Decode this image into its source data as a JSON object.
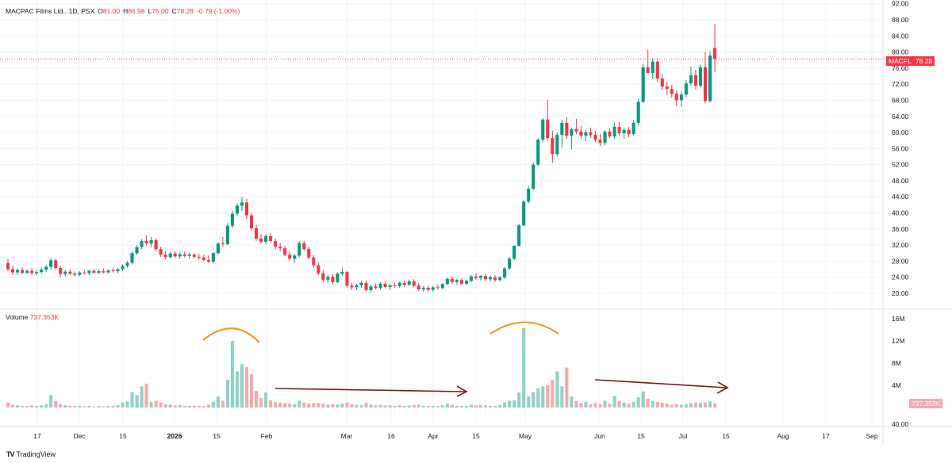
{
  "header": {
    "symbol": "MACPAC Films Ltd., 1D, PSX",
    "open_label": "O",
    "open": "81.00",
    "high_label": "H",
    "high": "86.98",
    "low_label": "L",
    "low": "75.00",
    "close_label": "C",
    "close": "78.28",
    "change": "-0.79 (-1.00%)"
  },
  "volume_header": {
    "label": "Volume",
    "value": "737.353K"
  },
  "price_tag": {
    "symbol": "MACFL",
    "value": "78.28"
  },
  "volume_tag": {
    "value": "737.353K"
  },
  "brand": {
    "logo": "TV",
    "name": "TradingView"
  },
  "colors": {
    "up": "#089981",
    "down": "#f23645",
    "vol_up": "#8fd2c7",
    "vol_down": "#f7a9b0",
    "annotation_orange": "#f7931a",
    "annotation_arrow": "#7b1e1e"
  },
  "chart_data": {
    "type": "candlestick",
    "price_axis": {
      "min": 18,
      "max": 92,
      "ticks": [
        "92.00",
        "88.00",
        "84.00",
        "80.00",
        "76.00",
        "72.00",
        "68.00",
        "64.00",
        "60.00",
        "56.00",
        "52.00",
        "48.00",
        "44.00",
        "40.00",
        "36.00",
        "32.00",
        "28.00",
        "24.00",
        "20.00"
      ]
    },
    "volume_axis": {
      "max": 16,
      "ticks": [
        "16M",
        "12M",
        "8M",
        "4M"
      ],
      "extra_tick": "40.00"
    },
    "x_tick_labels": [
      "17",
      "Dec",
      "15",
      "2026",
      "15",
      "Feb",
      "Mar",
      "16",
      "Apr",
      "15",
      "May",
      "Jun",
      "15",
      "Jul",
      "15",
      "Aug",
      "17",
      "Sep"
    ],
    "annotations": [
      "volume-arc-1",
      "volume-arc-2",
      "trend-arrow-1",
      "trend-arrow-2"
    ],
    "candles": [
      {
        "o": 27.5,
        "h": 28.5,
        "l": 25.5,
        "c": 26.0,
        "v": 0.9
      },
      {
        "o": 26.0,
        "h": 26.8,
        "l": 24.5,
        "c": 25.2,
        "v": 0.5
      },
      {
        "o": 25.2,
        "h": 26.2,
        "l": 24.6,
        "c": 25.8,
        "v": 0.4
      },
      {
        "o": 25.8,
        "h": 26.5,
        "l": 24.8,
        "c": 25.1,
        "v": 0.3
      },
      {
        "o": 25.1,
        "h": 26.0,
        "l": 24.9,
        "c": 25.6,
        "v": 0.3
      },
      {
        "o": 25.6,
        "h": 26.3,
        "l": 24.7,
        "c": 25.0,
        "v": 0.4
      },
      {
        "o": 25.0,
        "h": 25.8,
        "l": 24.4,
        "c": 25.3,
        "v": 0.3
      },
      {
        "o": 25.3,
        "h": 26.4,
        "l": 24.9,
        "c": 25.9,
        "v": 0.4
      },
      {
        "o": 25.9,
        "h": 27.0,
        "l": 25.3,
        "c": 26.6,
        "v": 0.6
      },
      {
        "o": 26.6,
        "h": 28.8,
        "l": 25.9,
        "c": 28.2,
        "v": 2.2
      },
      {
        "o": 28.2,
        "h": 28.6,
        "l": 26.0,
        "c": 26.3,
        "v": 1.2
      },
      {
        "o": 26.3,
        "h": 26.8,
        "l": 24.0,
        "c": 24.8,
        "v": 0.6
      },
      {
        "o": 24.8,
        "h": 25.8,
        "l": 24.3,
        "c": 25.4,
        "v": 0.4
      },
      {
        "o": 25.4,
        "h": 26.0,
        "l": 24.6,
        "c": 24.9,
        "v": 0.3
      },
      {
        "o": 24.9,
        "h": 25.4,
        "l": 24.2,
        "c": 24.6,
        "v": 0.3
      },
      {
        "o": 24.6,
        "h": 25.5,
        "l": 24.3,
        "c": 25.2,
        "v": 0.3
      },
      {
        "o": 25.2,
        "h": 25.8,
        "l": 24.7,
        "c": 25.0,
        "v": 0.2
      },
      {
        "o": 25.0,
        "h": 25.9,
        "l": 24.5,
        "c": 25.6,
        "v": 0.3
      },
      {
        "o": 25.6,
        "h": 26.0,
        "l": 24.9,
        "c": 25.1,
        "v": 0.2
      },
      {
        "o": 25.1,
        "h": 25.9,
        "l": 24.8,
        "c": 25.5,
        "v": 0.3
      },
      {
        "o": 25.5,
        "h": 26.2,
        "l": 25.0,
        "c": 25.2,
        "v": 0.2
      },
      {
        "o": 25.2,
        "h": 26.0,
        "l": 24.9,
        "c": 25.7,
        "v": 0.3
      },
      {
        "o": 25.7,
        "h": 26.4,
        "l": 25.2,
        "c": 25.5,
        "v": 0.3
      },
      {
        "o": 25.5,
        "h": 26.3,
        "l": 25.0,
        "c": 26.0,
        "v": 0.4
      },
      {
        "o": 26.0,
        "h": 27.2,
        "l": 25.6,
        "c": 26.8,
        "v": 0.9
      },
      {
        "o": 26.8,
        "h": 28.0,
        "l": 26.4,
        "c": 27.6,
        "v": 1.1
      },
      {
        "o": 27.6,
        "h": 30.5,
        "l": 27.2,
        "c": 30.0,
        "v": 2.8
      },
      {
        "o": 30.0,
        "h": 32.0,
        "l": 29.5,
        "c": 31.5,
        "v": 2.2
      },
      {
        "o": 31.5,
        "h": 33.5,
        "l": 31.0,
        "c": 33.0,
        "v": 3.8
      },
      {
        "o": 33.0,
        "h": 34.5,
        "l": 31.8,
        "c": 32.4,
        "v": 4.3
      },
      {
        "o": 32.4,
        "h": 34.0,
        "l": 31.5,
        "c": 33.2,
        "v": 1.0
      },
      {
        "o": 33.2,
        "h": 33.8,
        "l": 30.5,
        "c": 31.0,
        "v": 1.2
      },
      {
        "o": 31.0,
        "h": 31.6,
        "l": 29.0,
        "c": 29.6,
        "v": 0.9
      },
      {
        "o": 29.6,
        "h": 30.5,
        "l": 28.4,
        "c": 29.0,
        "v": 0.6
      },
      {
        "o": 29.0,
        "h": 30.3,
        "l": 28.6,
        "c": 29.9,
        "v": 0.5
      },
      {
        "o": 29.9,
        "h": 30.5,
        "l": 28.8,
        "c": 29.2,
        "v": 0.4
      },
      {
        "o": 29.2,
        "h": 30.2,
        "l": 28.5,
        "c": 29.7,
        "v": 0.4
      },
      {
        "o": 29.7,
        "h": 30.4,
        "l": 28.9,
        "c": 29.3,
        "v": 0.3
      },
      {
        "o": 29.3,
        "h": 30.1,
        "l": 28.6,
        "c": 29.6,
        "v": 0.3
      },
      {
        "o": 29.6,
        "h": 30.0,
        "l": 28.7,
        "c": 29.1,
        "v": 0.3
      },
      {
        "o": 29.1,
        "h": 29.8,
        "l": 28.4,
        "c": 28.9,
        "v": 0.3
      },
      {
        "o": 28.9,
        "h": 29.6,
        "l": 27.9,
        "c": 28.3,
        "v": 0.3
      },
      {
        "o": 28.3,
        "h": 29.4,
        "l": 27.5,
        "c": 27.9,
        "v": 0.5
      },
      {
        "o": 27.9,
        "h": 30.3,
        "l": 27.4,
        "c": 30.0,
        "v": 1.0
      },
      {
        "o": 30.0,
        "h": 32.8,
        "l": 29.6,
        "c": 32.4,
        "v": 2.0
      },
      {
        "o": 32.4,
        "h": 34.0,
        "l": 31.5,
        "c": 32.2,
        "v": 1.2
      },
      {
        "o": 32.2,
        "h": 37.5,
        "l": 32.0,
        "c": 36.8,
        "v": 5.0
      },
      {
        "o": 36.8,
        "h": 40.5,
        "l": 36.2,
        "c": 39.8,
        "v": 12.0
      },
      {
        "o": 39.8,
        "h": 42.4,
        "l": 39.2,
        "c": 41.8,
        "v": 6.5
      },
      {
        "o": 41.8,
        "h": 44.0,
        "l": 40.5,
        "c": 42.6,
        "v": 7.8
      },
      {
        "o": 42.6,
        "h": 43.5,
        "l": 38.5,
        "c": 39.4,
        "v": 7.3
      },
      {
        "o": 39.4,
        "h": 40.0,
        "l": 35.6,
        "c": 36.2,
        "v": 6.0
      },
      {
        "o": 36.2,
        "h": 37.0,
        "l": 33.0,
        "c": 33.6,
        "v": 3.0
      },
      {
        "o": 33.6,
        "h": 34.8,
        "l": 32.3,
        "c": 32.8,
        "v": 1.7
      },
      {
        "o": 32.8,
        "h": 34.8,
        "l": 32.2,
        "c": 34.2,
        "v": 2.7
      },
      {
        "o": 34.2,
        "h": 35.0,
        "l": 32.4,
        "c": 33.0,
        "v": 1.3
      },
      {
        "o": 33.0,
        "h": 33.6,
        "l": 30.8,
        "c": 31.6,
        "v": 1.0
      },
      {
        "o": 31.6,
        "h": 32.5,
        "l": 30.4,
        "c": 31.2,
        "v": 0.9
      },
      {
        "o": 31.2,
        "h": 31.8,
        "l": 29.2,
        "c": 29.6,
        "v": 0.8
      },
      {
        "o": 29.6,
        "h": 30.4,
        "l": 28.2,
        "c": 28.6,
        "v": 0.7
      },
      {
        "o": 28.6,
        "h": 29.8,
        "l": 27.6,
        "c": 29.4,
        "v": 0.6
      },
      {
        "o": 29.4,
        "h": 33.0,
        "l": 29.0,
        "c": 32.5,
        "v": 1.2
      },
      {
        "o": 32.5,
        "h": 33.0,
        "l": 30.6,
        "c": 31.0,
        "v": 0.9
      },
      {
        "o": 31.0,
        "h": 31.6,
        "l": 28.4,
        "c": 28.9,
        "v": 0.7
      },
      {
        "o": 28.9,
        "h": 29.5,
        "l": 26.4,
        "c": 27.0,
        "v": 0.8
      },
      {
        "o": 27.0,
        "h": 27.6,
        "l": 24.5,
        "c": 25.0,
        "v": 0.8
      },
      {
        "o": 25.0,
        "h": 25.8,
        "l": 22.8,
        "c": 23.4,
        "v": 0.7
      },
      {
        "o": 23.4,
        "h": 24.6,
        "l": 22.6,
        "c": 24.1,
        "v": 0.5
      },
      {
        "o": 24.1,
        "h": 24.8,
        "l": 22.2,
        "c": 22.8,
        "v": 0.6
      },
      {
        "o": 22.8,
        "h": 25.2,
        "l": 22.5,
        "c": 24.9,
        "v": 0.5
      },
      {
        "o": 24.9,
        "h": 26.4,
        "l": 24.4,
        "c": 25.3,
        "v": 0.7
      },
      {
        "o": 25.3,
        "h": 25.6,
        "l": 21.4,
        "c": 21.9,
        "v": 0.9
      },
      {
        "o": 21.9,
        "h": 22.6,
        "l": 20.8,
        "c": 21.5,
        "v": 0.6
      },
      {
        "o": 21.5,
        "h": 22.4,
        "l": 20.9,
        "c": 22.0,
        "v": 0.5
      },
      {
        "o": 22.0,
        "h": 23.0,
        "l": 21.4,
        "c": 22.6,
        "v": 0.4
      },
      {
        "o": 22.6,
        "h": 23.2,
        "l": 20.4,
        "c": 20.8,
        "v": 0.8
      },
      {
        "o": 20.8,
        "h": 22.0,
        "l": 20.2,
        "c": 21.7,
        "v": 0.5
      },
      {
        "o": 21.7,
        "h": 22.4,
        "l": 21.0,
        "c": 21.3,
        "v": 0.4
      },
      {
        "o": 21.3,
        "h": 22.8,
        "l": 20.9,
        "c": 22.4,
        "v": 0.5
      },
      {
        "o": 22.4,
        "h": 23.0,
        "l": 21.2,
        "c": 21.6,
        "v": 0.4
      },
      {
        "o": 21.6,
        "h": 22.3,
        "l": 20.8,
        "c": 22.0,
        "v": 0.4
      },
      {
        "o": 22.0,
        "h": 22.7,
        "l": 21.3,
        "c": 21.8,
        "v": 0.3
      },
      {
        "o": 21.8,
        "h": 23.0,
        "l": 21.4,
        "c": 22.6,
        "v": 0.4
      },
      {
        "o": 22.6,
        "h": 23.2,
        "l": 21.6,
        "c": 22.1,
        "v": 0.3
      },
      {
        "o": 22.1,
        "h": 23.4,
        "l": 21.9,
        "c": 23.0,
        "v": 0.4
      },
      {
        "o": 23.0,
        "h": 23.5,
        "l": 21.5,
        "c": 21.9,
        "v": 0.5
      },
      {
        "o": 21.9,
        "h": 22.6,
        "l": 20.6,
        "c": 21.0,
        "v": 0.5
      },
      {
        "o": 21.0,
        "h": 21.8,
        "l": 20.4,
        "c": 21.4,
        "v": 0.3
      },
      {
        "o": 21.4,
        "h": 21.9,
        "l": 20.5,
        "c": 20.9,
        "v": 0.3
      },
      {
        "o": 20.9,
        "h": 21.8,
        "l": 20.3,
        "c": 21.5,
        "v": 0.3
      },
      {
        "o": 21.5,
        "h": 22.2,
        "l": 20.9,
        "c": 21.3,
        "v": 0.3
      },
      {
        "o": 21.3,
        "h": 22.6,
        "l": 21.0,
        "c": 22.3,
        "v": 0.4
      },
      {
        "o": 22.3,
        "h": 24.0,
        "l": 22.0,
        "c": 23.6,
        "v": 0.7
      },
      {
        "o": 23.6,
        "h": 24.2,
        "l": 22.4,
        "c": 22.8,
        "v": 0.5
      },
      {
        "o": 22.8,
        "h": 23.6,
        "l": 22.2,
        "c": 23.3,
        "v": 0.3
      },
      {
        "o": 23.3,
        "h": 23.8,
        "l": 22.0,
        "c": 22.4,
        "v": 0.3
      },
      {
        "o": 22.4,
        "h": 23.4,
        "l": 22.0,
        "c": 23.1,
        "v": 0.3
      },
      {
        "o": 23.1,
        "h": 24.6,
        "l": 22.8,
        "c": 24.2,
        "v": 0.5
      },
      {
        "o": 24.2,
        "h": 25.0,
        "l": 23.4,
        "c": 23.8,
        "v": 0.4
      },
      {
        "o": 23.8,
        "h": 24.6,
        "l": 23.2,
        "c": 24.3,
        "v": 0.4
      },
      {
        "o": 24.3,
        "h": 24.8,
        "l": 23.0,
        "c": 23.5,
        "v": 0.4
      },
      {
        "o": 23.5,
        "h": 24.4,
        "l": 23.0,
        "c": 24.0,
        "v": 0.3
      },
      {
        "o": 24.0,
        "h": 24.5,
        "l": 22.8,
        "c": 23.3,
        "v": 0.3
      },
      {
        "o": 23.3,
        "h": 24.3,
        "l": 23.0,
        "c": 24.0,
        "v": 0.4
      },
      {
        "o": 24.0,
        "h": 26.6,
        "l": 23.6,
        "c": 26.2,
        "v": 0.9
      },
      {
        "o": 26.2,
        "h": 29.0,
        "l": 25.8,
        "c": 28.6,
        "v": 1.2
      },
      {
        "o": 28.6,
        "h": 32.0,
        "l": 28.3,
        "c": 31.8,
        "v": 1.3
      },
      {
        "o": 31.8,
        "h": 37.2,
        "l": 31.6,
        "c": 36.9,
        "v": 2.7
      },
      {
        "o": 36.9,
        "h": 43.2,
        "l": 36.6,
        "c": 42.8,
        "v": 14.3
      },
      {
        "o": 42.8,
        "h": 46.6,
        "l": 42.4,
        "c": 46.0,
        "v": 2.0
      },
      {
        "o": 46.0,
        "h": 52.5,
        "l": 45.6,
        "c": 52.0,
        "v": 2.8
      },
      {
        "o": 52.0,
        "h": 58.6,
        "l": 51.6,
        "c": 58.2,
        "v": 3.5
      },
      {
        "o": 58.2,
        "h": 63.6,
        "l": 57.6,
        "c": 63.2,
        "v": 3.8
      },
      {
        "o": 63.2,
        "h": 68.2,
        "l": 58.0,
        "c": 58.6,
        "v": 4.0
      },
      {
        "o": 58.6,
        "h": 60.4,
        "l": 52.4,
        "c": 54.6,
        "v": 5.0
      },
      {
        "o": 54.6,
        "h": 60.0,
        "l": 54.0,
        "c": 59.4,
        "v": 6.5
      },
      {
        "o": 59.4,
        "h": 63.2,
        "l": 56.2,
        "c": 62.4,
        "v": 3.8
      },
      {
        "o": 62.4,
        "h": 63.8,
        "l": 58.4,
        "c": 59.2,
        "v": 7.2
      },
      {
        "o": 59.2,
        "h": 61.2,
        "l": 55.8,
        "c": 60.8,
        "v": 2.0
      },
      {
        "o": 60.8,
        "h": 63.4,
        "l": 59.6,
        "c": 60.2,
        "v": 1.2
      },
      {
        "o": 60.2,
        "h": 61.6,
        "l": 58.4,
        "c": 59.2,
        "v": 0.8
      },
      {
        "o": 59.2,
        "h": 60.6,
        "l": 57.8,
        "c": 60.0,
        "v": 1.0
      },
      {
        "o": 60.0,
        "h": 61.2,
        "l": 58.6,
        "c": 59.4,
        "v": 0.6
      },
      {
        "o": 59.4,
        "h": 60.4,
        "l": 57.6,
        "c": 58.2,
        "v": 0.8
      },
      {
        "o": 58.2,
        "h": 59.6,
        "l": 56.6,
        "c": 57.4,
        "v": 0.6
      },
      {
        "o": 57.4,
        "h": 60.6,
        "l": 56.8,
        "c": 60.2,
        "v": 1.2
      },
      {
        "o": 60.2,
        "h": 61.0,
        "l": 58.6,
        "c": 59.0,
        "v": 0.7
      },
      {
        "o": 59.0,
        "h": 62.4,
        "l": 58.4,
        "c": 61.4,
        "v": 2.1
      },
      {
        "o": 61.4,
        "h": 62.6,
        "l": 59.2,
        "c": 59.8,
        "v": 1.2
      },
      {
        "o": 59.8,
        "h": 61.2,
        "l": 58.4,
        "c": 60.6,
        "v": 0.9
      },
      {
        "o": 60.6,
        "h": 61.4,
        "l": 58.8,
        "c": 59.6,
        "v": 0.7
      },
      {
        "o": 59.6,
        "h": 63.0,
        "l": 59.2,
        "c": 62.4,
        "v": 1.0
      },
      {
        "o": 62.4,
        "h": 68.4,
        "l": 61.8,
        "c": 67.6,
        "v": 1.8
      },
      {
        "o": 67.6,
        "h": 77.0,
        "l": 67.2,
        "c": 76.2,
        "v": 2.9
      },
      {
        "o": 76.2,
        "h": 80.6,
        "l": 74.8,
        "c": 74.8,
        "v": 1.6
      },
      {
        "o": 74.8,
        "h": 78.4,
        "l": 73.2,
        "c": 77.6,
        "v": 1.2
      },
      {
        "o": 77.6,
        "h": 78.0,
        "l": 72.6,
        "c": 73.4,
        "v": 1.0
      },
      {
        "o": 73.4,
        "h": 74.6,
        "l": 70.6,
        "c": 71.4,
        "v": 0.8
      },
      {
        "o": 71.4,
        "h": 72.6,
        "l": 69.4,
        "c": 70.8,
        "v": 0.7
      },
      {
        "o": 70.8,
        "h": 71.8,
        "l": 68.6,
        "c": 69.6,
        "v": 0.5
      },
      {
        "o": 69.6,
        "h": 70.4,
        "l": 66.6,
        "c": 68.0,
        "v": 0.6
      },
      {
        "o": 68.0,
        "h": 70.2,
        "l": 66.4,
        "c": 69.4,
        "v": 0.5
      },
      {
        "o": 69.4,
        "h": 73.0,
        "l": 68.8,
        "c": 72.2,
        "v": 0.6
      },
      {
        "o": 72.2,
        "h": 76.4,
        "l": 71.6,
        "c": 74.2,
        "v": 0.8
      },
      {
        "o": 74.2,
        "h": 75.6,
        "l": 70.6,
        "c": 71.6,
        "v": 0.9
      },
      {
        "o": 71.6,
        "h": 76.8,
        "l": 71.0,
        "c": 76.2,
        "v": 0.8
      },
      {
        "o": 76.2,
        "h": 80.0,
        "l": 67.2,
        "c": 67.8,
        "v": 0.9
      },
      {
        "o": 67.8,
        "h": 80.2,
        "l": 67.4,
        "c": 79.1,
        "v": 1.1
      },
      {
        "o": 81.0,
        "h": 86.98,
        "l": 75.0,
        "c": 78.28,
        "v": 0.737
      }
    ]
  }
}
